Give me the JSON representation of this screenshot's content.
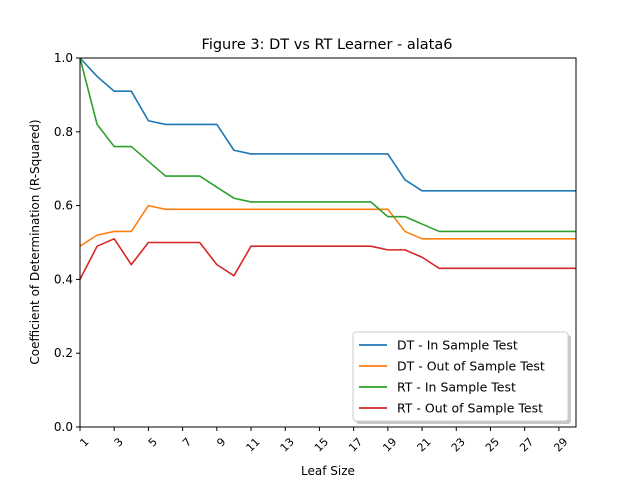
{
  "chart_data": {
    "type": "line",
    "title": "Figure 3: DT vs RT Learner - alata6",
    "xlabel": "Leaf Size",
    "ylabel": "Coefficient of Determination (R-Squared)",
    "xlim": [
      1,
      30
    ],
    "ylim": [
      0.0,
      1.0
    ],
    "x_ticks": [
      "1",
      "3",
      "5",
      "7",
      "9",
      "11",
      "13",
      "15",
      "17",
      "19",
      "21",
      "23",
      "25",
      "27",
      "29"
    ],
    "x_tick_values": [
      1,
      3,
      5,
      7,
      9,
      11,
      13,
      15,
      17,
      19,
      21,
      23,
      25,
      27,
      29
    ],
    "y_ticks": [
      "0.0",
      "0.2",
      "0.4",
      "0.6",
      "0.8",
      "1.0"
    ],
    "y_tick_values": [
      0.0,
      0.2,
      0.4,
      0.6,
      0.8,
      1.0
    ],
    "grid": false,
    "legend_position": "bottom-right",
    "x": [
      1,
      2,
      3,
      4,
      5,
      6,
      7,
      8,
      9,
      10,
      11,
      12,
      13,
      14,
      15,
      16,
      17,
      18,
      19,
      20,
      21,
      22,
      23,
      24,
      25,
      26,
      27,
      28,
      29,
      30
    ],
    "series": [
      {
        "name": "DT - In Sample Test",
        "color": "#1f77b4",
        "values": [
          1.0,
          0.95,
          0.91,
          0.91,
          0.83,
          0.82,
          0.82,
          0.82,
          0.82,
          0.75,
          0.74,
          0.74,
          0.74,
          0.74,
          0.74,
          0.74,
          0.74,
          0.74,
          0.74,
          0.67,
          0.64,
          0.64,
          0.64,
          0.64,
          0.64,
          0.64,
          0.64,
          0.64,
          0.64,
          0.64
        ]
      },
      {
        "name": "DT - Out of Sample Test",
        "color": "#ff7f0e",
        "values": [
          0.49,
          0.52,
          0.53,
          0.53,
          0.6,
          0.59,
          0.59,
          0.59,
          0.59,
          0.59,
          0.59,
          0.59,
          0.59,
          0.59,
          0.59,
          0.59,
          0.59,
          0.59,
          0.59,
          0.53,
          0.51,
          0.51,
          0.51,
          0.51,
          0.51,
          0.51,
          0.51,
          0.51,
          0.51,
          0.51
        ]
      },
      {
        "name": "RT - In Sample Test",
        "color": "#2ca02c",
        "values": [
          1.0,
          0.82,
          0.76,
          0.76,
          0.72,
          0.68,
          0.68,
          0.68,
          0.65,
          0.62,
          0.61,
          0.61,
          0.61,
          0.61,
          0.61,
          0.61,
          0.61,
          0.61,
          0.57,
          0.57,
          0.55,
          0.53,
          0.53,
          0.53,
          0.53,
          0.53,
          0.53,
          0.53,
          0.53,
          0.53
        ]
      },
      {
        "name": "RT - Out of Sample Test",
        "color": "#d62728",
        "values": [
          0.4,
          0.49,
          0.51,
          0.44,
          0.5,
          0.5,
          0.5,
          0.5,
          0.44,
          0.41,
          0.49,
          0.49,
          0.49,
          0.49,
          0.49,
          0.49,
          0.49,
          0.49,
          0.48,
          0.48,
          0.46,
          0.43,
          0.43,
          0.43,
          0.43,
          0.43,
          0.43,
          0.43,
          0.43,
          0.43
        ]
      }
    ]
  }
}
